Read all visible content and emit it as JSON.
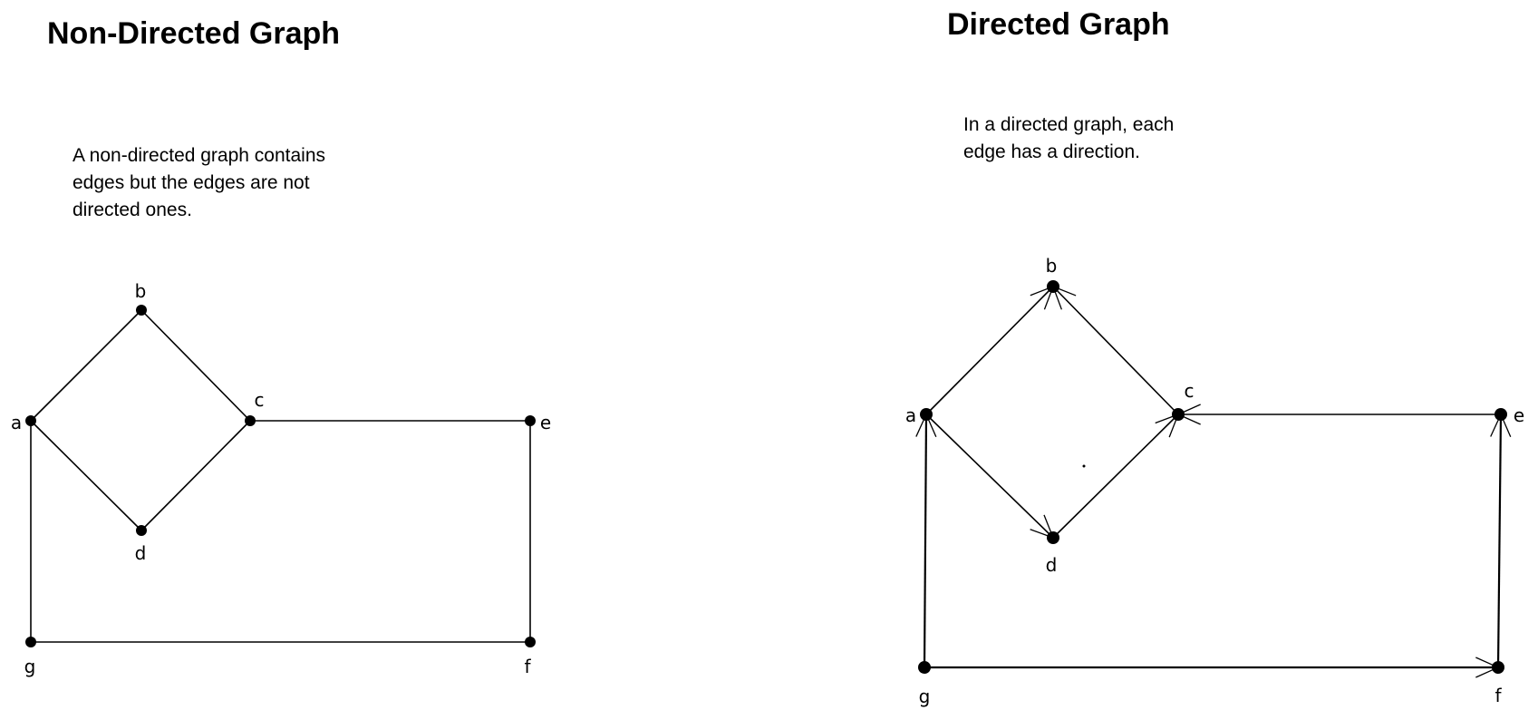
{
  "undirected": {
    "title": "Non-Directed Graph",
    "description_lines": [
      "A non-directed graph contains",
      "edges but the edges are not",
      "directed ones."
    ],
    "nodes": [
      "a",
      "b",
      "c",
      "d",
      "e",
      "f",
      "g"
    ],
    "edges": [
      [
        "a",
        "b"
      ],
      [
        "b",
        "c"
      ],
      [
        "a",
        "d"
      ],
      [
        "d",
        "c"
      ],
      [
        "c",
        "e"
      ],
      [
        "a",
        "g"
      ],
      [
        "e",
        "f"
      ],
      [
        "g",
        "f"
      ]
    ]
  },
  "directed": {
    "title": "Directed Graph",
    "description_lines": [
      "In a directed graph, each",
      "edge has a direction."
    ],
    "nodes": [
      "a",
      "b",
      "c",
      "d",
      "e",
      "f",
      "g"
    ],
    "edges": [
      [
        "a",
        "b"
      ],
      [
        "c",
        "b"
      ],
      [
        "a",
        "d"
      ],
      [
        "d",
        "c"
      ],
      [
        "e",
        "c"
      ],
      [
        "g",
        "a"
      ],
      [
        "f",
        "e"
      ],
      [
        "g",
        "f"
      ]
    ]
  },
  "colors": {
    "ink": "#000000",
    "background": "#ffffff"
  }
}
